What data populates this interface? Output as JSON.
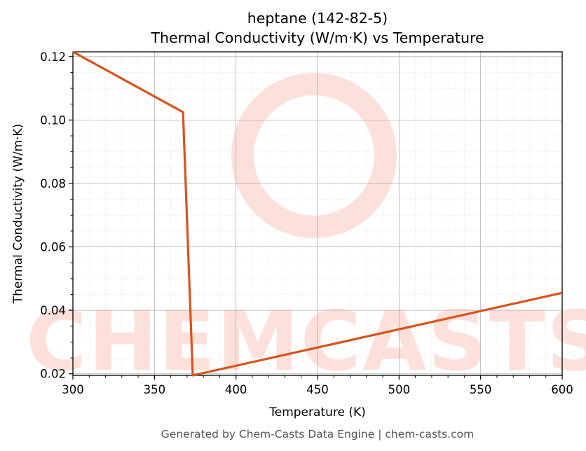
{
  "chart_data": {
    "type": "line",
    "title": "heptane (142-82-5)",
    "subtitle": "Thermal Conductivity (W/m·K) vs Temperature",
    "xlabel": "Temperature (K)",
    "ylabel": "Thermal Conductivity (W/m·K)",
    "xlim": [
      300,
      600
    ],
    "ylim": [
      0.0195,
      0.1215
    ],
    "xticks": [
      300,
      350,
      400,
      450,
      500,
      550,
      600
    ],
    "xtick_labels": [
      "300",
      "350",
      "400",
      "450",
      "500",
      "550",
      "600"
    ],
    "yticks": [
      0.02,
      0.04,
      0.06,
      0.08,
      0.1,
      0.12
    ],
    "ytick_labels": [
      "0.02",
      "0.04",
      "0.06",
      "0.08",
      "0.10",
      "0.12"
    ],
    "grid": true,
    "legend": false,
    "line_color": "#d9531e",
    "series": [
      {
        "x": [
          300,
          367.5,
          373.5,
          600
        ],
        "y": [
          0.1215,
          0.1025,
          0.0195,
          0.0455
        ]
      }
    ]
  },
  "watermark": {
    "text": "CHEMCASTS",
    "color": "#fde0da"
  },
  "footer": "Generated by Chem-Casts Data Engine | chem-casts.com"
}
